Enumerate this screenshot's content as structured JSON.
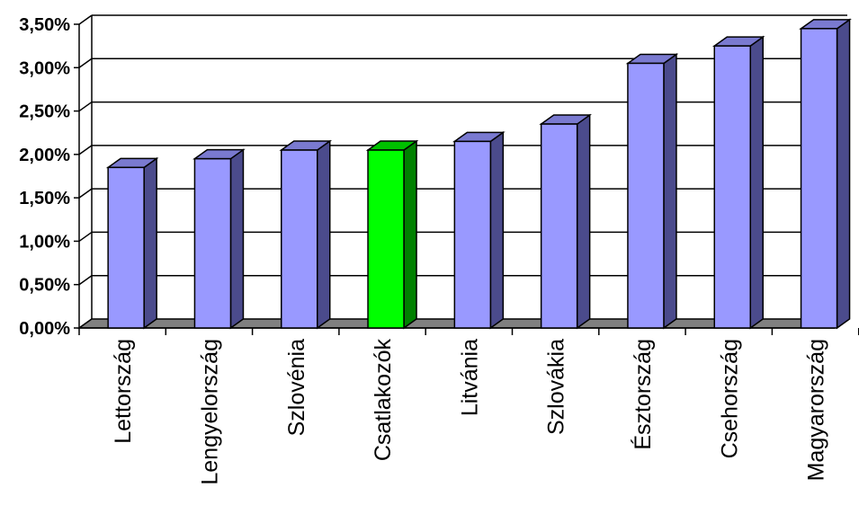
{
  "chart_data": {
    "type": "bar",
    "style": "3d-column",
    "categories": [
      "Lettország",
      "Lengyelország",
      "Szlovénia",
      "Csatlakozók",
      "Litvánia",
      "Szlovákia",
      "Észtország",
      "Csehország",
      "Magyarország"
    ],
    "values": [
      1.85,
      1.95,
      2.05,
      2.05,
      2.15,
      2.35,
      3.05,
      3.25,
      3.45
    ],
    "highlight_index": 3,
    "colors": {
      "bar_front": "#9999ff",
      "bar_side": "#4b4b8c",
      "bar_top": "#7a7ad0",
      "highlight_front": "#00ff00",
      "highlight_side": "#008000",
      "highlight_top": "#00c000",
      "floor": "#808080",
      "gridline": "#000000"
    },
    "ylim": [
      0,
      3.5
    ],
    "yticks": [
      0,
      0.5,
      1.0,
      1.5,
      2.0,
      2.5,
      3.0,
      3.5
    ],
    "ytick_labels": [
      "0,00%",
      "0,50%",
      "1,00%",
      "1,50%",
      "2,00%",
      "2,50%",
      "3,00%",
      "3,50%"
    ],
    "grid": true,
    "title": "",
    "xlabel": "",
    "ylabel": ""
  }
}
